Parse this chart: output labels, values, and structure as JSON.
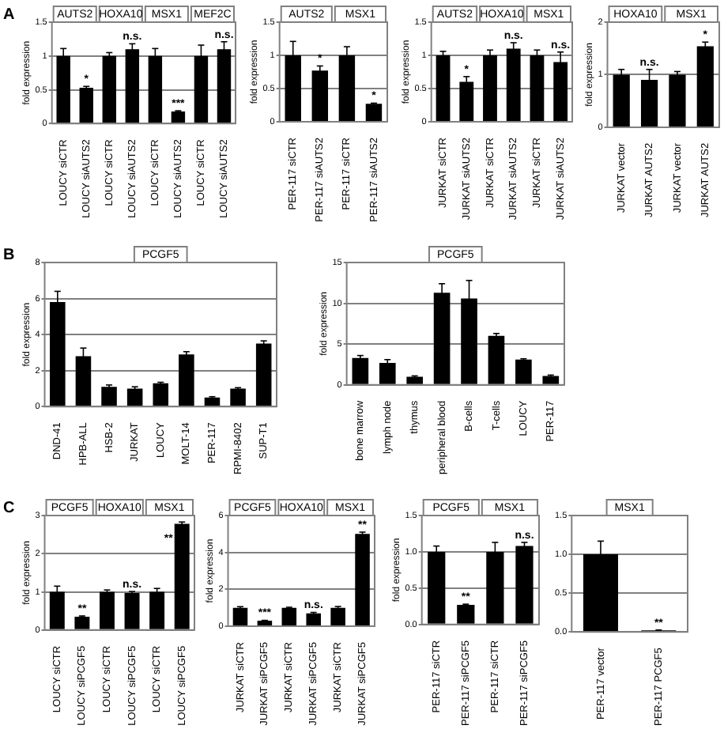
{
  "chart_data": [
    {
      "type": "bar",
      "title": "A",
      "ylabel": "fold expression",
      "categories": [
        "LOUCY siCTR",
        "LOUCY siAUTS2",
        "LOUCY siCTR",
        "LOUCY siAUTS2",
        "LOUCY siCTR",
        "LOUCY siAUTS2",
        "LOUCY siCTR",
        "LOUCY siAUTS2"
      ],
      "color": "#000000",
      "values": [
        1,
        0.53,
        1,
        1.1,
        1,
        0.18,
        1,
        1.1
      ],
      "errors": [
        0.11,
        0.02,
        0.05,
        0.08,
        0.11,
        0.01,
        0.16,
        0.11
      ],
      "ylim": [
        0,
        1.5
      ],
      "yticks": [
        0,
        0.5,
        1,
        1.5
      ],
      "grid": "y",
      "annotations": [
        "AUTS2",
        "HOXA10",
        "MSX1",
        "MEF2C",
        "*",
        "n.s.",
        "***",
        "n.s."
      ]
    },
    {
      "type": "bar",
      "ylabel": "fold expression",
      "categories": [
        "PER-117 siCTR",
        "PER-117 siAUTS2",
        "PER-117 siCTR",
        "PER-117 siAUTS2"
      ],
      "color": "#000000",
      "values": [
        1,
        0.77,
        1,
        0.27
      ],
      "errors": [
        0.21,
        0.07,
        0.13,
        0.01
      ],
      "ylim": [
        0,
        1.5
      ],
      "yticks": [
        0,
        0.5,
        1,
        1.5
      ],
      "grid": "y",
      "annotations": [
        "AUTS2",
        "MSX1",
        "*",
        "*"
      ]
    },
    {
      "type": "bar",
      "ylabel": "fold expression",
      "categories": [
        "JURKAT siCTR",
        "JURKAT siAUTS2",
        "JURKAT siCTR",
        "JURKAT siAUTS2",
        "JURKAT siCTR",
        "JURKAT siAUTS2"
      ],
      "color": "#000000",
      "values": [
        1,
        0.6,
        1,
        1.1,
        1,
        0.9
      ],
      "errors": [
        0.06,
        0.08,
        0.08,
        0.09,
        0.08,
        0.15
      ],
      "ylim": [
        0,
        1.5
      ],
      "yticks": [
        0,
        0.5,
        1,
        1.5
      ],
      "grid": "y",
      "annotations": [
        "AUTS2",
        "HOXA10",
        "MSX1",
        "*",
        "n.s.",
        "n.s."
      ]
    },
    {
      "type": "bar",
      "ylabel": "fold expression",
      "categories": [
        "JURKAT vector",
        "JURKAT AUTS2",
        "JURKAT vector",
        "JURKAT AUTS2"
      ],
      "color": "#000000",
      "values": [
        1,
        0.9,
        1,
        1.54
      ],
      "errors": [
        0.1,
        0.2,
        0.06,
        0.08
      ],
      "ylim": [
        0,
        2
      ],
      "yticks": [
        0,
        1,
        2
      ],
      "grid": "y",
      "annotations": [
        "HOXA10",
        "MSX1",
        "n.s.",
        "*"
      ]
    },
    {
      "type": "bar",
      "title": "B",
      "ylabel": "fold expression",
      "categories": [
        "DND-41",
        "HPB-ALL",
        "HSB-2",
        "JURKAT",
        "LOUCY",
        "MOLT-14",
        "PER-117",
        "RPMI-8402",
        "SUP-T1"
      ],
      "color": "#000000",
      "values": [
        5.8,
        2.8,
        1.1,
        1.0,
        1.3,
        2.9,
        0.5,
        1.0,
        3.5
      ],
      "errors": [
        0.6,
        0.45,
        0.1,
        0.1,
        0.05,
        0.15,
        0.05,
        0.05,
        0.15
      ],
      "ylim": [
        0,
        8
      ],
      "yticks": [
        0,
        2,
        4,
        6,
        8
      ],
      "grid": "y",
      "annotations": [
        "PCGF5"
      ]
    },
    {
      "type": "bar",
      "ylabel": "fold expression",
      "categories": [
        "bone marrow",
        "lymph node",
        "thymus",
        "peripheral blood",
        "B-cells",
        "T-cells",
        "LOUCY",
        "PER-117"
      ],
      "color": "#000000",
      "values": [
        3.3,
        2.7,
        1.0,
        11.3,
        10.6,
        6.0,
        3.1,
        1.1
      ],
      "errors": [
        0.3,
        0.4,
        0.1,
        1.1,
        2.2,
        0.3,
        0.1,
        0.1
      ],
      "ylim": [
        0,
        15
      ],
      "yticks": [
        0,
        5,
        10,
        15
      ],
      "grid": "y",
      "annotations": [
        "PCGF5"
      ]
    },
    {
      "type": "bar",
      "title": "C",
      "ylabel": "fold expression",
      "categories": [
        "LOUCY siCTR",
        "LOUCY siPCGF5",
        "LOUCY siCTR",
        "LOUCY siPCGF5",
        "LOUCY siCTR",
        "LOUCY siPCGF5"
      ],
      "color": "#000000",
      "values": [
        1,
        0.35,
        1,
        0.97,
        1,
        2.78
      ],
      "errors": [
        0.15,
        0.02,
        0.05,
        0.04,
        0.09,
        0.05
      ],
      "ylim": [
        0,
        3
      ],
      "yticks": [
        0,
        1,
        2,
        3
      ],
      "grid": "y",
      "annotations": [
        "PCGF5",
        "HOXA10",
        "MSX1",
        "**",
        "n.s.",
        "**"
      ]
    },
    {
      "type": "bar",
      "ylabel": "fold expression",
      "categories": [
        "JURKAT siCTR",
        "JURKAT siPCGF5",
        "JURKAT siCTR",
        "JURKAT siPCGF5",
        "JURKAT siCTR",
        "JURKAT siPCGF5"
      ],
      "color": "#000000",
      "values": [
        1,
        0.3,
        1,
        0.7,
        1,
        5.0
      ],
      "errors": [
        0.06,
        0.02,
        0.03,
        0.05,
        0.07,
        0.1
      ],
      "ylim": [
        0,
        6
      ],
      "yticks": [
        0,
        2,
        4,
        6
      ],
      "grid": "y",
      "annotations": [
        "PCGF5",
        "HOXA10",
        "MSX1",
        "***",
        "n.s.",
        "**"
      ]
    },
    {
      "type": "bar",
      "ylabel": "fold expression",
      "categories": [
        "PER-117 siCTR",
        "PER-117 siPCGF5",
        "PER-117 siCTR",
        "PER-117 siPCGF5"
      ],
      "color": "#000000",
      "values": [
        1,
        0.27,
        1,
        1.08
      ],
      "errors": [
        0.08,
        0.01,
        0.13,
        0.05
      ],
      "ylim": [
        0,
        1.5
      ],
      "yticks": [
        {
          "value": 0,
          "label": "0.0"
        },
        {
          "value": 0.5,
          "label": "0.5"
        },
        {
          "value": 1,
          "label": "1.0"
        },
        {
          "value": 1.5,
          "label": "1.5"
        }
      ],
      "grid": "y",
      "annotations": [
        "PCGF5",
        "MSX1",
        "**",
        "n.s."
      ]
    },
    {
      "type": "bar",
      "categories": [
        "PER-117 vector",
        "PER-117 PCGF5"
      ],
      "color": "#000000",
      "values": [
        1,
        0.02
      ],
      "errors": [
        0.17,
        0.005
      ],
      "ylim": [
        0,
        1.5
      ],
      "yticks": [
        {
          "value": 0,
          "label": "0.0"
        },
        {
          "value": 0.5,
          "label": "0.5"
        },
        {
          "value": 1,
          "label": "1.0"
        },
        {
          "value": 1.5,
          "label": "1.5"
        }
      ],
      "grid": "y",
      "annotations": [
        "MSX1",
        "**"
      ]
    }
  ]
}
